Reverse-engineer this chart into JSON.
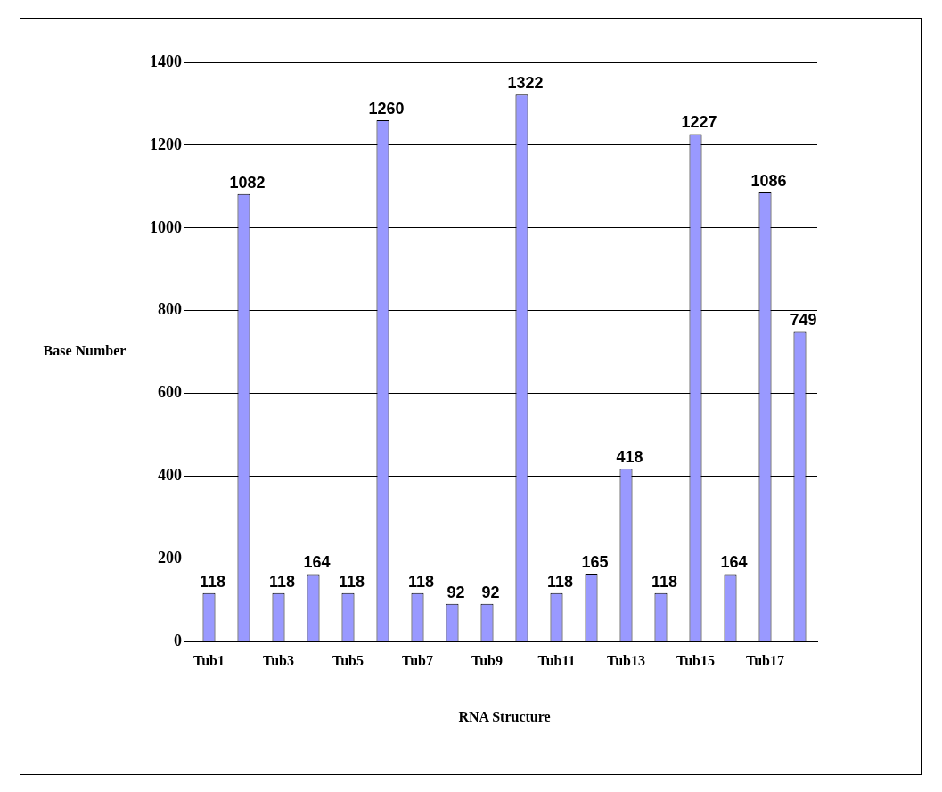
{
  "chart_data": {
    "type": "bar",
    "xlabel": "RNA Structure",
    "ylabel": "Base Number",
    "categories": [
      "Tub1",
      null,
      "Tub3",
      null,
      "Tub5",
      null,
      "Tub7",
      null,
      "Tub9",
      null,
      "Tub11",
      null,
      "Tub13",
      null,
      "Tub15",
      null,
      "Tub17",
      null
    ],
    "values": [
      118,
      1082,
      118,
      164,
      118,
      1260,
      118,
      92,
      92,
      1322,
      118,
      165,
      418,
      118,
      1227,
      164,
      1086,
      749
    ],
    "color": "#9999ff",
    "ylim": [
      0,
      1400
    ],
    "yticks": [
      0,
      200,
      400,
      600,
      800,
      1000,
      1200,
      1400
    ],
    "grid": "y",
    "legend": false,
    "data_labels": true
  }
}
